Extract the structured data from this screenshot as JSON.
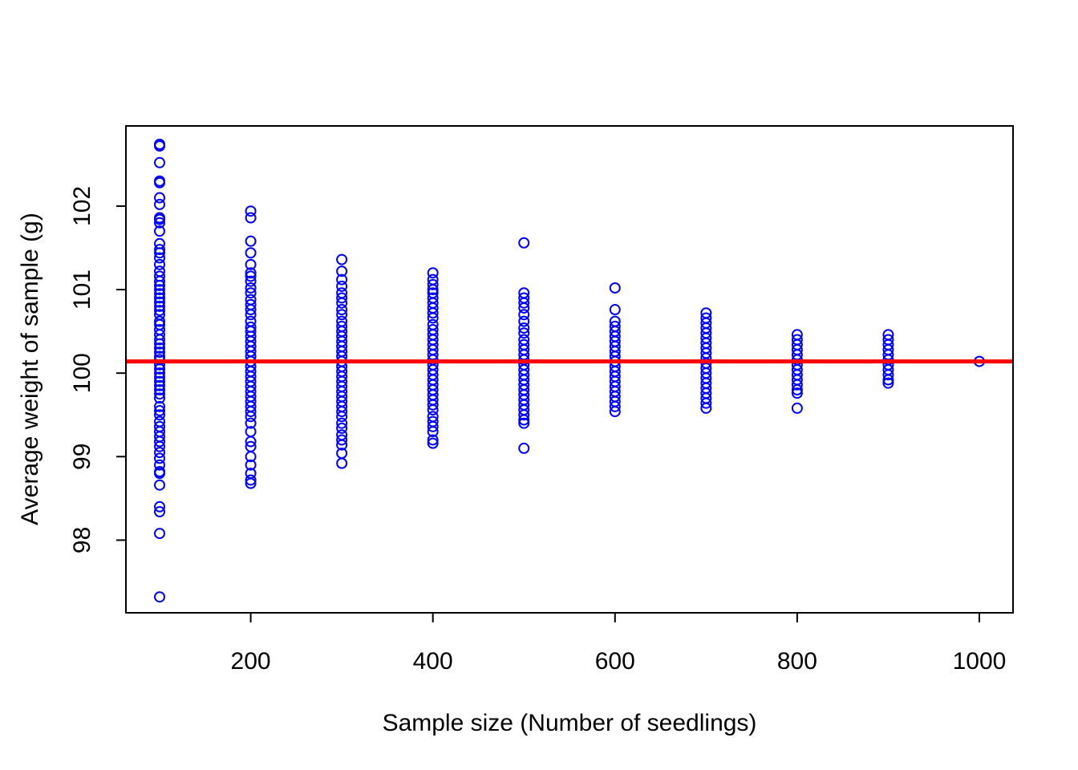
{
  "chart_data": {
    "type": "scatter",
    "xlabel": "Sample size (Number of seedlings)",
    "ylabel": "Average weight of sample (g)",
    "xlim": [
      63,
      1037
    ],
    "ylim": [
      97.13,
      102.96
    ],
    "x_ticks": [
      200,
      400,
      600,
      800,
      1000
    ],
    "y_ticks": [
      98,
      99,
      100,
      101,
      102
    ],
    "x_tick_labels": [
      "200",
      "400",
      "600",
      "800",
      "1000"
    ],
    "y_tick_labels": [
      "98",
      "99",
      "100",
      "101",
      "102"
    ],
    "grid": false,
    "legend": "none",
    "point_color": "#0000ff",
    "reference_line": {
      "y": 100.14,
      "color": "#ff0000"
    },
    "series": [
      {
        "values": [
          {
            "x": 100,
            "y": [
              102.74,
              102.72,
              102.52,
              102.3,
              102.28,
              102.1,
              102.02,
              101.86,
              101.84,
              101.8,
              101.7,
              101.55,
              101.48,
              101.44,
              101.38,
              101.3,
              101.22,
              101.16,
              101.1,
              101.05,
              101.0,
              100.95,
              100.9,
              100.85,
              100.8,
              100.75,
              100.7,
              100.62,
              100.58,
              100.52,
              100.46,
              100.4,
              100.35,
              100.3,
              100.25,
              100.2,
              100.16,
              100.1,
              100.05,
              100.0,
              99.95,
              99.9,
              99.85,
              99.8,
              99.75,
              99.7,
              99.6,
              99.55,
              99.5,
              99.42,
              99.36,
              99.3,
              99.24,
              99.18,
              99.12,
              99.05,
              98.98,
              98.9,
              98.82,
              98.8,
              98.66,
              98.4,
              98.34,
              98.08,
              97.32
            ]
          },
          {
            "x": 200,
            "y": [
              101.94,
              101.86,
              101.58,
              101.44,
              101.3,
              101.2,
              101.16,
              101.1,
              101.02,
              100.96,
              100.88,
              100.82,
              100.76,
              100.7,
              100.62,
              100.55,
              100.5,
              100.44,
              100.38,
              100.32,
              100.26,
              100.2,
              100.14,
              100.08,
              100.02,
              99.96,
              99.9,
              99.84,
              99.78,
              99.72,
              99.66,
              99.6,
              99.54,
              99.48,
              99.4,
              99.3,
              99.18,
              99.12,
              99.0,
              98.9,
              98.8,
              98.72,
              98.68
            ]
          },
          {
            "x": 300,
            "y": [
              101.36,
              101.22,
              101.12,
              101.04,
              100.96,
              100.9,
              100.84,
              100.76,
              100.7,
              100.62,
              100.56,
              100.5,
              100.44,
              100.38,
              100.32,
              100.26,
              100.2,
              100.14,
              100.08,
              100.02,
              99.96,
              99.9,
              99.84,
              99.78,
              99.72,
              99.66,
              99.6,
              99.54,
              99.48,
              99.4,
              99.34,
              99.26,
              99.2,
              99.14,
              99.04,
              98.92
            ]
          },
          {
            "x": 400,
            "y": [
              101.2,
              101.12,
              101.06,
              101.0,
              100.96,
              100.9,
              100.84,
              100.78,
              100.72,
              100.66,
              100.58,
              100.52,
              100.46,
              100.4,
              100.34,
              100.28,
              100.22,
              100.16,
              100.1,
              100.04,
              99.98,
              99.92,
              99.86,
              99.8,
              99.74,
              99.68,
              99.62,
              99.56,
              99.48,
              99.42,
              99.36,
              99.3,
              99.2,
              99.16
            ]
          },
          {
            "x": 500,
            "y": [
              101.56,
              100.96,
              100.9,
              100.84,
              100.78,
              100.7,
              100.62,
              100.54,
              100.48,
              100.4,
              100.34,
              100.28,
              100.22,
              100.16,
              100.1,
              100.04,
              99.98,
              99.92,
              99.86,
              99.8,
              99.74,
              99.68,
              99.62,
              99.56,
              99.5,
              99.44,
              99.4,
              99.1
            ]
          },
          {
            "x": 600,
            "y": [
              101.02,
              100.76,
              100.62,
              100.56,
              100.5,
              100.44,
              100.38,
              100.32,
              100.26,
              100.2,
              100.14,
              100.08,
              100.02,
              99.96,
              99.9,
              99.84,
              99.78,
              99.72,
              99.66,
              99.6,
              99.54
            ]
          },
          {
            "x": 700,
            "y": [
              100.72,
              100.66,
              100.6,
              100.54,
              100.48,
              100.42,
              100.36,
              100.3,
              100.24,
              100.18,
              100.12,
              100.06,
              100.0,
              99.94,
              99.88,
              99.82,
              99.76,
              99.7,
              99.64,
              99.58
            ]
          },
          {
            "x": 800,
            "y": [
              100.46,
              100.4,
              100.34,
              100.28,
              100.22,
              100.16,
              100.1,
              100.04,
              99.98,
              99.92,
              99.86,
              99.8,
              99.76,
              99.58
            ]
          },
          {
            "x": 900,
            "y": [
              100.46,
              100.4,
              100.34,
              100.28,
              100.22,
              100.16,
              100.1,
              100.04,
              99.98,
              99.92,
              99.88
            ]
          },
          {
            "x": 1000,
            "y": [
              100.14
            ]
          }
        ]
      }
    ]
  }
}
